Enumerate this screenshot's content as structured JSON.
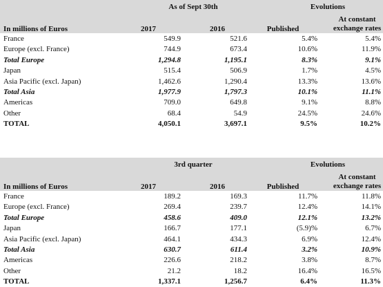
{
  "tables": [
    {
      "header": {
        "group_left": "As of Sept 30th",
        "group_right": "Evolutions",
        "row_label": "In millions of Euros",
        "col1": "2017",
        "col2": "2016",
        "col3": "Published",
        "col4": "At constant exchange rates"
      },
      "rows": [
        [
          "France",
          "549.9",
          "521.6",
          "5.4%",
          "5.4%"
        ],
        [
          "Europe (excl. France)",
          "744.9",
          "673.4",
          "10.6%",
          "11.9%"
        ],
        [
          "Total Europe",
          "1,294.8",
          "1,195.1",
          "8.3%",
          "9.1%"
        ],
        [
          "Japan",
          "515.4",
          "506.9",
          "1.7%",
          "4.5%"
        ],
        [
          "Asia Pacific (excl. Japan)",
          "1,462.6",
          "1,290.4",
          "13.3%",
          "13.6%"
        ],
        [
          "Total Asia",
          "1,977.9",
          "1,797.3",
          "10.1%",
          "11.1%"
        ],
        [
          "Americas",
          "709.0",
          "649.8",
          "9.1%",
          "8.8%"
        ],
        [
          "Other",
          "68.4",
          "54.9",
          "24.5%",
          "24.6%"
        ],
        [
          "TOTAL",
          "4,050.1",
          "3,697.1",
          "9.5%",
          "10.2%"
        ]
      ]
    },
    {
      "header": {
        "group_left": "3rd quarter",
        "group_right": "Evolutions",
        "row_label": "In millions of Euros",
        "col1": "2017",
        "col2": "2016",
        "col3": "Published",
        "col4": "At constant exchange rates"
      },
      "rows": [
        [
          "France",
          "189.2",
          "169.3",
          "11.7%",
          "11.8%"
        ],
        [
          "Europe (excl. France)",
          "269.4",
          "239.7",
          "12.4%",
          "14.1%"
        ],
        [
          "Total Europe",
          "458.6",
          "409.0",
          "12.1%",
          "13.2%"
        ],
        [
          "Japan",
          "166.7",
          "177.1",
          "(5.9)%",
          "6.7%"
        ],
        [
          "Asia Pacific (excl. Japan)",
          "464.1",
          "434.3",
          "6.9%",
          "12.4%"
        ],
        [
          "Total Asia",
          "630.7",
          "611.4",
          "3.2%",
          "10.9%"
        ],
        [
          "Americas",
          "226.6",
          "218.2",
          "3.8%",
          "8.7%"
        ],
        [
          "Other",
          "21.2",
          "18.2",
          "16.4%",
          "16.5%"
        ],
        [
          "TOTAL",
          "1,337.1",
          "1,256.7",
          "6.4%",
          "11.3%"
        ]
      ]
    }
  ]
}
